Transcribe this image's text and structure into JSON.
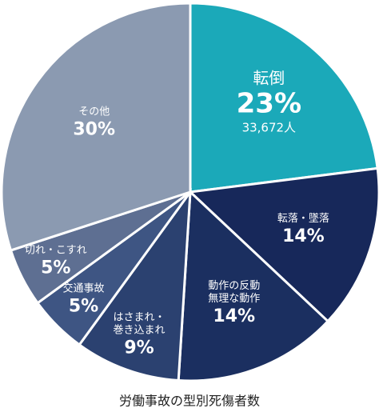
{
  "chart_data": {
    "type": "pie",
    "title": "労働事故の型別死傷者数",
    "categories": [
      [
        "転倒"
      ],
      [
        "転落・墜落"
      ],
      [
        "動作の反動",
        "無理な動作"
      ],
      [
        "はさまれ・",
        "巻き込まれ"
      ],
      [
        "交通事故"
      ],
      [
        "切れ・こすれ"
      ],
      [
        "その他"
      ]
    ],
    "values": [
      23,
      14,
      14,
      9,
      5,
      5,
      30
    ],
    "value_labels": [
      "23%",
      "14%",
      "14%",
      "9%",
      "5%",
      "5%",
      "30%"
    ],
    "colors": [
      "#1ba9b9",
      "#17285a",
      "#1b2f60",
      "#2b4170",
      "#3e5583",
      "#5e6f92",
      "#8b9ab1"
    ],
    "annotation": "33,672人"
  }
}
